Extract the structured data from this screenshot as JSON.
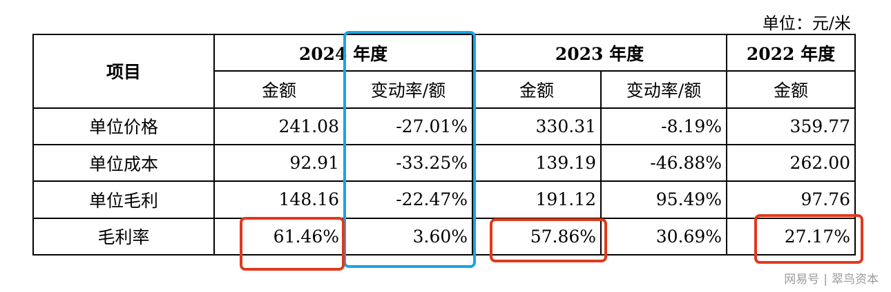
{
  "unit_label": "单位：元/米",
  "header": {
    "item": "项目",
    "year_2024": "2024 年度",
    "year_2023": "2023 年度",
    "year_2022": "2022 年度",
    "amount": "金额",
    "change": "变动率/额"
  },
  "rows": [
    {
      "label": "单位价格",
      "v2024": "241.08",
      "c2024": "-27.01%",
      "v2023": "330.31",
      "c2023": "-8.19%",
      "v2022": "359.77"
    },
    {
      "label": "单位成本",
      "v2024": "92.91",
      "c2024": "-33.25%",
      "v2023": "139.19",
      "c2023": "-46.88%",
      "v2022": "262.00"
    },
    {
      "label": "单位毛利",
      "v2024": "148.16",
      "c2024": "-22.47%",
      "v2023": "191.12",
      "c2023": "95.49%",
      "v2022": "97.76"
    },
    {
      "label": "毛利率",
      "v2024": "61.46%",
      "c2024": "3.60%",
      "v2023": "57.86%",
      "c2023": "30.69%",
      "v2022": "27.17%"
    }
  ],
  "highlight_colors": {
    "blue": "#1aa3e6",
    "red": "#e0391c"
  },
  "watermark": {
    "platform": "网易号",
    "separator": "|",
    "account": "翠鸟资本"
  }
}
